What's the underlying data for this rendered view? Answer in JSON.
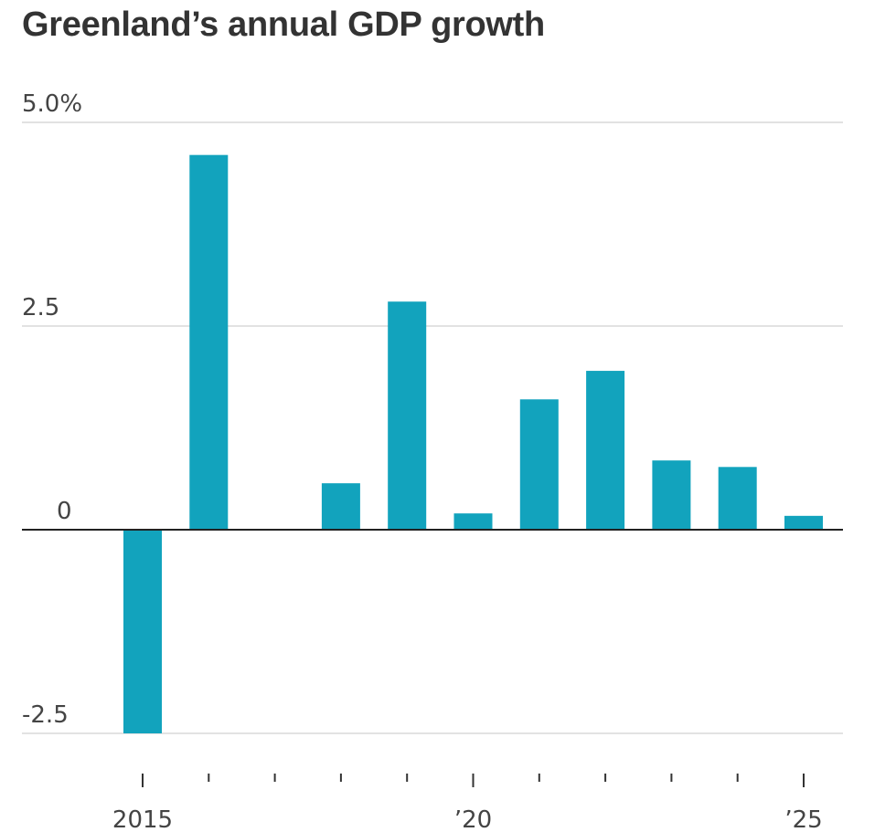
{
  "chart_data": {
    "type": "bar",
    "title": "Greenland’s annual GDP growth",
    "categories": [
      "2015",
      "2016",
      "2017",
      "2018",
      "2019",
      "2020",
      "2021",
      "2022",
      "2023",
      "2024",
      "2025"
    ],
    "values": [
      -2.5,
      4.6,
      0,
      0.57,
      2.8,
      0.2,
      1.6,
      1.95,
      0.85,
      0.77,
      0.17
    ],
    "ylim": [
      -2.5,
      5.0
    ],
    "yticks": [
      5.0,
      2.5,
      0,
      -2.5
    ],
    "ytick_labels": [
      "5.0%",
      "2.5",
      "0",
      "-2.5"
    ],
    "xtick_labels": {
      "2015": "2015",
      "2020": "’20",
      "2025": "’25"
    },
    "xlabel": "",
    "ylabel": "",
    "grid": true,
    "bar_color": "#12a3bd"
  }
}
